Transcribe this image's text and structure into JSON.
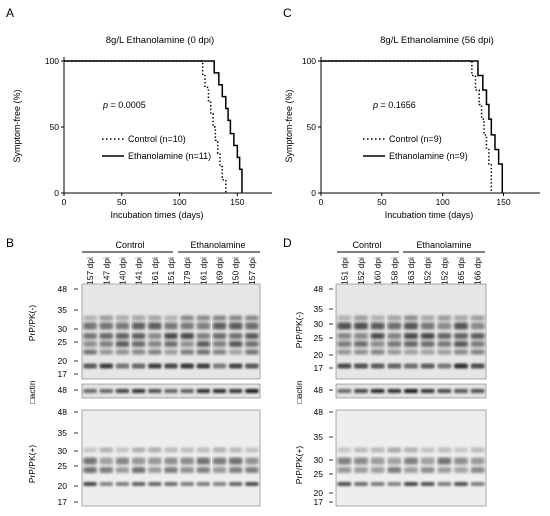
{
  "panels": {
    "A": {
      "letter": "A",
      "title": "8g/L Ethanolamine (0 dpi)",
      "ylabel": "Symptom-free (%)",
      "xlabel": "Incubation times (days)",
      "p_prefix": "p",
      "p_value": " = 0.0005",
      "legend": [
        "Control (n=10)",
        "Ethanolamine (n=11)"
      ]
    },
    "C": {
      "letter": "C",
      "title": "8g/L Ethanolamine (56 dpi)",
      "ylabel": "Symptom-free (%)",
      "xlabel": "Incubation time (days)",
      "p_prefix": "p",
      "p_value": " = 0.1656",
      "legend": [
        "Control (n=9)",
        "Ethanolamine (n=9)"
      ]
    },
    "B": {
      "letter": "B",
      "groups": [
        "Control",
        "Ethanolamine"
      ],
      "lanes": [
        "157 dpi",
        "147 dpi",
        "140 dpi",
        "141 dpi",
        "161 dpi",
        "151 dpi",
        "179 dpi",
        "161 dpi",
        "169 dpi",
        "150 dpi",
        "157 dpi"
      ],
      "blot_labels": [
        "PrP/PK(-)",
        "□actin",
        "PrP/PK(+)"
      ],
      "mw_top": [
        "48",
        "35",
        "30",
        "25",
        "20",
        "17"
      ],
      "mw_actin": [
        "48"
      ],
      "mw_bottom": [
        "48",
        "35",
        "30",
        "25",
        "20",
        "17"
      ]
    },
    "D": {
      "letter": "D",
      "groups": [
        "Control",
        "Ethanolamine"
      ],
      "lanes": [
        "151 dpi",
        "152 dpi",
        "160 dpi",
        "158 dpi",
        "163 dpi",
        "152 dpi",
        "152 dpi",
        "165 dpi",
        "166 dpi"
      ],
      "blot_labels": [
        "PrP/PK(-)",
        "□actin",
        "PrP/PK(+)"
      ],
      "mw_top": [
        "48",
        "35",
        "30",
        "25",
        "20",
        "17"
      ],
      "mw_actin": [
        "48"
      ],
      "mw_bottom": [
        "48",
        "35",
        "30",
        "25",
        "20",
        "17"
      ]
    }
  },
  "chart_data": [
    {
      "type": "line",
      "step": true,
      "title": "8g/L Ethanolamine (0 dpi)",
      "xlabel": "Incubation times (days)",
      "ylabel": "Symptom-free (%)",
      "xlim": [
        0,
        180
      ],
      "ylim": [
        0,
        100
      ],
      "xticks": [
        0,
        50,
        100,
        150
      ],
      "yticks": [
        0,
        50,
        100
      ],
      "series": [
        {
          "name": "Control (n=10)",
          "style": "dotted",
          "x": [
            0,
            117,
            120,
            122,
            125,
            127,
            129,
            131,
            133,
            135,
            137,
            140
          ],
          "y": [
            100,
            100,
            90,
            80,
            70,
            60,
            50,
            40,
            30,
            20,
            10,
            0
          ]
        },
        {
          "name": "Ethanolamine (n=11)",
          "style": "solid",
          "x": [
            0,
            124,
            130,
            134,
            137,
            140,
            142,
            144,
            147,
            150,
            152,
            154
          ],
          "y": [
            100,
            100,
            91,
            82,
            73,
            64,
            55,
            45,
            36,
            27,
            18,
            0
          ]
        }
      ]
    },
    {
      "type": "line",
      "step": true,
      "title": "8g/L Ethanolamine (56 dpi)",
      "xlabel": "Incubation time (days)",
      "ylabel": "Symptom-free (%)",
      "xlim": [
        0,
        180
      ],
      "ylim": [
        0,
        100
      ],
      "xticks": [
        0,
        50,
        100,
        150
      ],
      "yticks": [
        0,
        50,
        100
      ],
      "series": [
        {
          "name": "Control (n=9)",
          "style": "dotted",
          "x": [
            0,
            120,
            124,
            127,
            130,
            132,
            134,
            136,
            138,
            140
          ],
          "y": [
            100,
            100,
            89,
            78,
            67,
            56,
            44,
            33,
            22,
            0
          ]
        },
        {
          "name": "Ethanolamine (n=9)",
          "style": "solid",
          "x": [
            0,
            125,
            129,
            133,
            136,
            138,
            140,
            143,
            146,
            149
          ],
          "y": [
            100,
            100,
            89,
            78,
            67,
            56,
            44,
            33,
            22,
            0
          ]
        }
      ]
    }
  ]
}
